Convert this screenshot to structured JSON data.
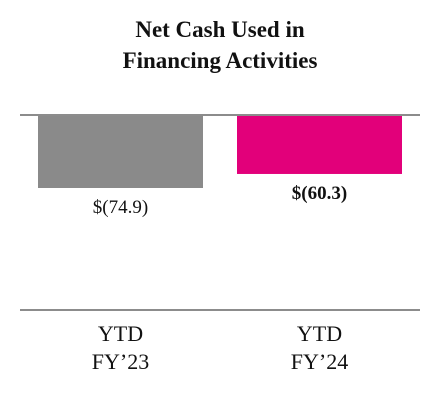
{
  "chart_data": {
    "type": "bar",
    "title": [
      "Net Cash Used in",
      "Financing Activities"
    ],
    "categories": [
      {
        "line1": "YTD",
        "line2": "FY’23"
      },
      {
        "line1": "YTD",
        "line2": "FY’24"
      }
    ],
    "values": [
      -74.9,
      -60.3
    ],
    "data_labels": [
      "$(74.9)",
      "$(60.3)"
    ],
    "data_label_bold": [
      false,
      true
    ],
    "bar_colors": [
      "#8a8a8a",
      "#e2007a"
    ],
    "axis_color": "#8c8c8c",
    "xlabel": "",
    "ylabel": "",
    "grid": false,
    "legend": "none"
  }
}
